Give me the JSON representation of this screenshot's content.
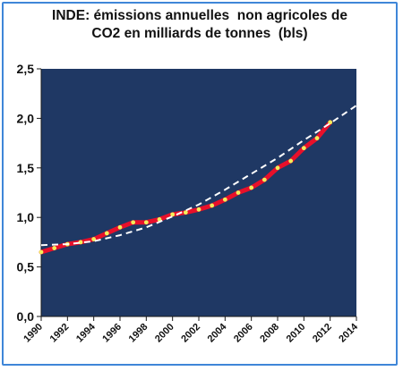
{
  "chart_data": {
    "type": "line",
    "title_lines": [
      "INDE: émissions annuelles  non agricoles de",
      "CO2 en milliards de tonnes  (bls)"
    ],
    "xlabel": "",
    "ylabel": "",
    "xlim": [
      1990,
      2014
    ],
    "ylim": [
      0,
      2.5
    ],
    "y_ticks": [
      "0,0",
      "0,5",
      "1,0",
      "1,5",
      "2,0",
      "2,5"
    ],
    "x_ticks": [
      "1990",
      "1992",
      "1994",
      "1996",
      "1998",
      "2000",
      "2002",
      "2004",
      "2006",
      "2008",
      "2010",
      "2012",
      "2014"
    ],
    "grid": false,
    "legend": "none",
    "colors": {
      "plot_background": "#1f3864",
      "series_line": "#e8102a",
      "series_markers": "#f2ee5a",
      "trend_line": "#ffffff",
      "frame_border": "#3f86d8"
    },
    "series": [
      {
        "role": "actual",
        "x": [
          1990,
          1991,
          1992,
          1993,
          1994,
          1995,
          1996,
          1997,
          1998,
          1999,
          2000,
          2001,
          2002,
          2003,
          2004,
          2005,
          2006,
          2007,
          2008,
          2009,
          2010,
          2011,
          2012
        ],
        "values": [
          0.65,
          0.69,
          0.73,
          0.75,
          0.78,
          0.84,
          0.9,
          0.95,
          0.95,
          0.98,
          1.03,
          1.05,
          1.08,
          1.12,
          1.18,
          1.25,
          1.3,
          1.38,
          1.5,
          1.57,
          1.7,
          1.8,
          1.96
        ]
      },
      {
        "role": "trend",
        "x": [
          1990,
          1992,
          1994,
          1996,
          1998,
          2000,
          2002,
          2004,
          2006,
          2008,
          2010,
          2012,
          2014
        ],
        "values": [
          0.72,
          0.73,
          0.76,
          0.82,
          0.9,
          1.01,
          1.13,
          1.28,
          1.44,
          1.6,
          1.78,
          1.95,
          2.13
        ]
      }
    ]
  }
}
